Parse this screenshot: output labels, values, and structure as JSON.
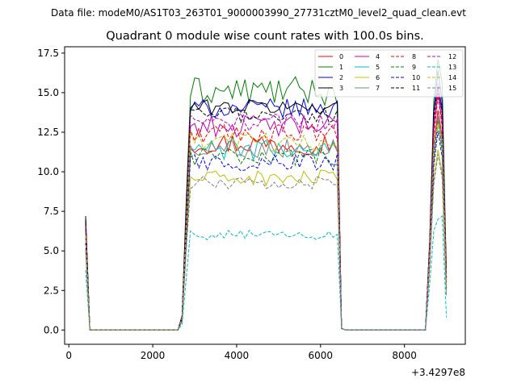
{
  "chart_data": {
    "type": "line",
    "suptitle": "Data file: modeM0/AS1T03_263T01_9000003990_27731cztM0_level2_quad_clean.evt",
    "title": "Quadrant 0 module wise count rates with 100.0s bins.",
    "xlabel": "",
    "ylabel": "",
    "x_offset_label": "+3.4297e8",
    "xlim": [
      -100,
      9450
    ],
    "ylim": [
      -0.9,
      17.9
    ],
    "x_ticks": [
      0,
      2000,
      4000,
      6000,
      8000
    ],
    "y_ticks": [
      0.0,
      2.5,
      5.0,
      7.5,
      10.0,
      12.5,
      15.0,
      17.5
    ],
    "grid": false,
    "legend_position": "upper-right",
    "x": [
      400,
      500,
      600,
      700,
      800,
      900,
      1000,
      1100,
      1200,
      1300,
      1400,
      1500,
      1600,
      1700,
      1800,
      1900,
      2000,
      2100,
      2200,
      2300,
      2400,
      2500,
      2600,
      2700,
      2800,
      2900,
      3000,
      3100,
      3200,
      3300,
      3400,
      3500,
      3600,
      3700,
      3800,
      3900,
      4000,
      4100,
      4200,
      4300,
      4400,
      4500,
      4600,
      4700,
      4800,
      4900,
      5000,
      5100,
      5200,
      5300,
      5400,
      5500,
      5600,
      5700,
      5800,
      5900,
      6000,
      6100,
      6200,
      6300,
      6400,
      6500,
      6600,
      6700,
      6800,
      6900,
      7000,
      7100,
      7200,
      7300,
      7400,
      7500,
      7600,
      7700,
      7800,
      7900,
      8000,
      8100,
      8200,
      8300,
      8400,
      8500,
      8600,
      8700,
      8800,
      8900,
      9000
    ],
    "segments": [
      {
        "start": 0,
        "end": 26,
        "mean_index": 52,
        "active_from": 3,
        "active_to": 41
      }
    ],
    "series": [
      {
        "name": "0",
        "color": "#ff0000",
        "dash": "solid",
        "start": 6.6,
        "level": 11.8,
        "wiggle": 0.7,
        "tail": [
          5.0,
          11.5,
          13.9,
          12.2,
          4.0
        ]
      },
      {
        "name": "1",
        "color": "#008000",
        "dash": "solid",
        "start": 7.0,
        "level": 15.1,
        "wiggle": 0.9,
        "tail": [
          5.5,
          14.5,
          17.1,
          15.6,
          3.5
        ]
      },
      {
        "name": "2",
        "color": "#0000ff",
        "dash": "solid",
        "start": 6.9,
        "level": 14.0,
        "wiggle": 0.6,
        "tail": [
          5.4,
          13.8,
          16.4,
          14.4,
          3.2
        ]
      },
      {
        "name": "3",
        "color": "#000000",
        "dash": "solid",
        "start": 7.2,
        "level": 14.1,
        "wiggle": 0.5,
        "tail": [
          5.6,
          13.9,
          15.4,
          14.0,
          3.3
        ]
      },
      {
        "name": "4",
        "color": "#bf00bf",
        "dash": "solid",
        "start": 6.5,
        "level": 12.9,
        "wiggle": 0.7,
        "tail": [
          5.1,
          12.7,
          15.0,
          13.1,
          3.0
        ]
      },
      {
        "name": "5",
        "color": "#00bfbf",
        "dash": "solid",
        "start": 6.1,
        "level": 11.4,
        "wiggle": 0.7,
        "tail": [
          4.8,
          11.2,
          13.5,
          11.8,
          2.8
        ]
      },
      {
        "name": "6",
        "color": "#bfbf00",
        "dash": "solid",
        "start": 5.1,
        "level": 9.6,
        "wiggle": 0.5,
        "tail": [
          4.0,
          9.5,
          11.4,
          9.9,
          2.3
        ]
      },
      {
        "name": "7",
        "color": "#808080",
        "dash": "solid",
        "start": 5.8,
        "level": 11.5,
        "wiggle": 0.6,
        "tail": [
          4.6,
          11.3,
          13.4,
          11.6,
          2.7
        ]
      },
      {
        "name": "8",
        "color": "#ff0000",
        "dash": "dashed",
        "start": 6.7,
        "level": 12.4,
        "wiggle": 0.6,
        "tail": [
          5.2,
          12.2,
          14.8,
          12.8,
          3.1
        ]
      },
      {
        "name": "9",
        "color": "#008000",
        "dash": "dashed",
        "start": 6.3,
        "level": 11.0,
        "wiggle": 0.6,
        "tail": [
          4.9,
          10.8,
          13.2,
          11.3,
          2.9
        ]
      },
      {
        "name": "10",
        "color": "#0000ff",
        "dash": "dashed",
        "start": 5.5,
        "level": 10.6,
        "wiggle": 0.6,
        "tail": [
          4.4,
          10.4,
          12.6,
          10.9,
          2.6
        ]
      },
      {
        "name": "11",
        "color": "#000000",
        "dash": "dashed",
        "start": 7.0,
        "level": 13.6,
        "wiggle": 0.5,
        "tail": [
          5.5,
          13.5,
          15.2,
          13.8,
          3.3
        ]
      },
      {
        "name": "12",
        "color": "#bf00bf",
        "dash": "dashed",
        "start": 6.6,
        "level": 13.1,
        "wiggle": 0.6,
        "tail": [
          5.2,
          13.0,
          15.6,
          13.3,
          3.1
        ]
      },
      {
        "name": "13",
        "color": "#00bfbf",
        "dash": "dashed",
        "start": 3.8,
        "level": 6.0,
        "wiggle": 0.3,
        "tail": [
          2.9,
          6.3,
          7.0,
          7.2,
          0.8
        ]
      },
      {
        "name": "14",
        "color": "#bfbf00",
        "dash": "dashed",
        "start": 6.0,
        "level": 11.9,
        "wiggle": 0.6,
        "tail": [
          4.8,
          11.7,
          13.1,
          12.0,
          2.8
        ]
      },
      {
        "name": "15",
        "color": "#808080",
        "dash": "dashed",
        "start": 5.0,
        "level": 9.3,
        "wiggle": 0.4,
        "tail": [
          4.0,
          9.2,
          11.1,
          9.6,
          2.2
        ]
      }
    ]
  }
}
